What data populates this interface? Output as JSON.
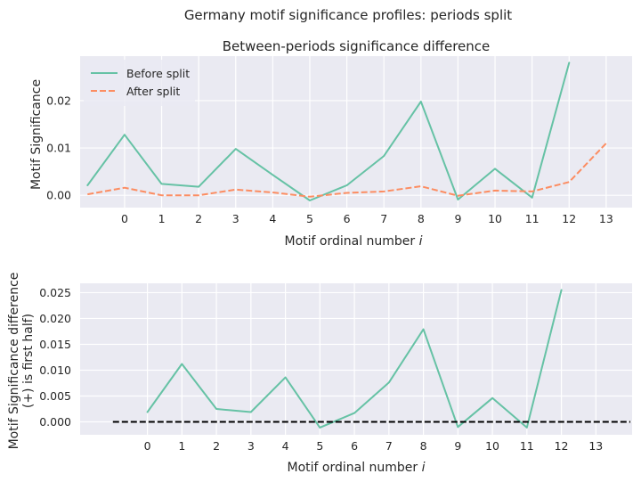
{
  "figure": {
    "suptitle": "Germany motif significance profiles: periods split"
  },
  "chart_data": [
    {
      "type": "line",
      "title": "Between-periods significance difference",
      "xlabel": "Motif ordinal number",
      "xlabel_italic": "i",
      "ylabel": "Motif Significance",
      "xlim": [
        -1.2,
        13.7
      ],
      "ylim": [
        -0.0026,
        0.0294
      ],
      "xticks": [
        0,
        1,
        2,
        3,
        4,
        5,
        6,
        7,
        8,
        9,
        10,
        11,
        12,
        13
      ],
      "yticks": [
        0.0,
        0.01,
        0.02
      ],
      "ytick_labels": [
        "0.00",
        "0.01",
        "0.02"
      ],
      "grid": true,
      "legend_position": "top-left",
      "series": [
        {
          "name": "Before split",
          "color": "#66c2a5",
          "dash": "solid",
          "x": [
            -1,
            0,
            1,
            2,
            3,
            4,
            5,
            6,
            7,
            8,
            9,
            10,
            11,
            12
          ],
          "values": [
            0.0021,
            0.0128,
            0.0024,
            0.0018,
            0.0098,
            0.0043,
            -0.0011,
            0.0021,
            0.0083,
            0.0198,
            -0.0009,
            0.0056,
            -0.0005,
            0.028
          ]
        },
        {
          "name": "After split",
          "color": "#fc8d62",
          "dash": "dashed",
          "x": [
            -1,
            0,
            1,
            2,
            3,
            4,
            5,
            6,
            7,
            8,
            9,
            10,
            11,
            12,
            13
          ],
          "values": [
            0.0002,
            0.0016,
            0.0,
            0.0,
            0.0012,
            0.0006,
            -0.0003,
            0.0005,
            0.0008,
            0.0019,
            -0.0001,
            0.001,
            0.0008,
            0.0028,
            0.011
          ]
        }
      ]
    },
    {
      "type": "line",
      "title": "",
      "xlabel": "Motif ordinal number",
      "xlabel_italic": "i",
      "ylabel": "Motif Significance difference",
      "ylabel2": "(+) is first half)",
      "xlim": [
        -1.95,
        14.05
      ],
      "ylim": [
        -0.0025,
        0.0268
      ],
      "xticks": [
        0,
        1,
        2,
        3,
        4,
        5,
        6,
        7,
        8,
        9,
        10,
        11,
        12,
        13
      ],
      "yticks": [
        0.0,
        0.005,
        0.01,
        0.015,
        0.02,
        0.025
      ],
      "ytick_labels": [
        "0.000",
        "0.005",
        "0.010",
        "0.015",
        "0.020",
        "0.025"
      ],
      "grid": true,
      "series": [
        {
          "color": "#66c2a5",
          "dash": "solid",
          "x": [
            0,
            1,
            2,
            3,
            4,
            5,
            6,
            7,
            8,
            9,
            10,
            11,
            12
          ],
          "values": [
            0.0019,
            0.0112,
            0.0025,
            0.0019,
            0.0086,
            -0.0011,
            0.0017,
            0.0076,
            0.0179,
            -0.001,
            0.0046,
            -0.0011,
            0.0255
          ]
        },
        {
          "color": "#000000",
          "dash": "dashed",
          "x": [
            -1,
            14
          ],
          "values": [
            0,
            0
          ]
        }
      ]
    }
  ]
}
